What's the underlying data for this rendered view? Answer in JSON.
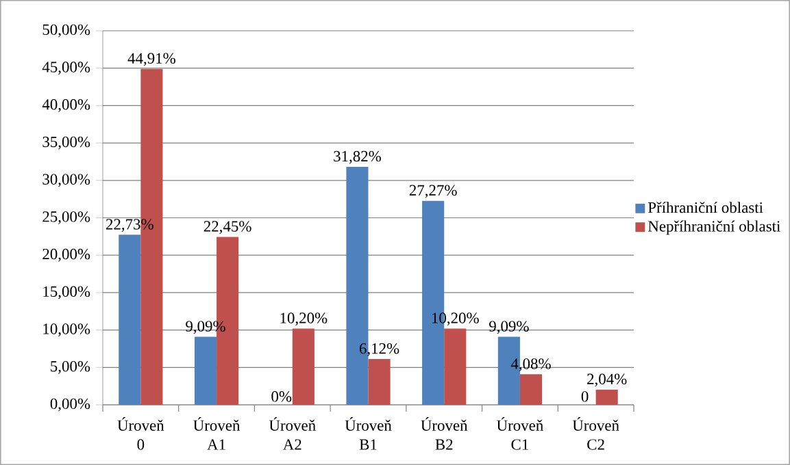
{
  "chart_data": {
    "type": "bar",
    "categories": [
      "Úroveň 0",
      "Úroveň A1",
      "Úroveň A2",
      "Úroveň B1",
      "Úroveň B2",
      "Úroveň C1",
      "Úroveň C2"
    ],
    "series": [
      {
        "name": "Příhraniční oblasti",
        "color": "#4f81bd",
        "values": [
          22.73,
          9.09,
          0,
          31.82,
          27.27,
          9.09,
          0
        ],
        "value_labels": [
          "22,73%",
          "9,09%",
          "0%",
          "31,82%",
          "27,27%",
          "9,09%",
          "0"
        ]
      },
      {
        "name": "Nepříhraniční oblasti",
        "color": "#c0504d",
        "values": [
          44.91,
          22.45,
          10.2,
          6.12,
          10.2,
          4.08,
          2.04
        ],
        "value_labels": [
          "44,91%",
          "22,45%",
          "10,20%",
          "6,12%",
          "10,20%",
          "4,08%",
          "2,04%"
        ]
      }
    ],
    "ylim": [
      0,
      50
    ],
    "yticks": [
      {
        "value": 0,
        "label": "0,00%"
      },
      {
        "value": 5,
        "label": "5,00%"
      },
      {
        "value": 10,
        "label": "10,00%"
      },
      {
        "value": 15,
        "label": "15,00%"
      },
      {
        "value": 20,
        "label": "20,00%"
      },
      {
        "value": 25,
        "label": "25,00%"
      },
      {
        "value": 30,
        "label": "30,00%"
      },
      {
        "value": 35,
        "label": "35,00%"
      },
      {
        "value": 40,
        "label": "40,00%"
      },
      {
        "value": 45,
        "label": "45,00%"
      },
      {
        "value": 50,
        "label": "50,00%"
      }
    ],
    "grid": "y",
    "legend": "right"
  }
}
